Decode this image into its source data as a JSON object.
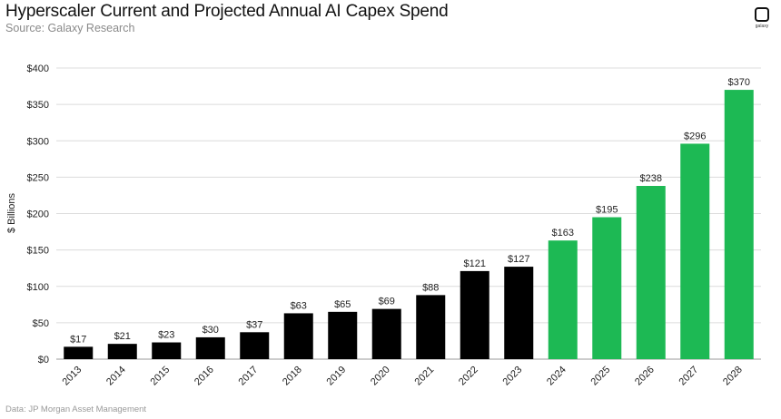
{
  "header": {
    "title": "Hyperscaler Current and Projected Annual AI Capex Spend",
    "subtitle": "Source: Galaxy Research"
  },
  "logo": {
    "text": "galaxy",
    "icon": "galaxy-logo-icon"
  },
  "footer": {
    "note": "Data: JP Morgan Asset Management"
  },
  "colors": {
    "actual": "#000000",
    "projected": "#1db954",
    "grid": "#dcdcdc"
  },
  "chart_data": {
    "type": "bar",
    "ylabel": "$ Billions",
    "ylim": [
      0,
      400
    ],
    "yticks": [
      0,
      50,
      100,
      150,
      200,
      250,
      300,
      350,
      400
    ],
    "ytick_labels": [
      "$0",
      "$50",
      "$100",
      "$150",
      "$200",
      "$250",
      "$300",
      "$350",
      "$400"
    ],
    "grid": true,
    "categories": [
      "2013",
      "2014",
      "2015",
      "2016",
      "2017",
      "2018",
      "2019",
      "2020",
      "2021",
      "2022",
      "2023",
      "2024",
      "2025",
      "2026",
      "2027",
      "2028"
    ],
    "values": [
      17,
      21,
      23,
      30,
      37,
      63,
      65,
      69,
      88,
      121,
      127,
      163,
      195,
      238,
      296,
      370
    ],
    "data_labels": [
      "$17",
      "$21",
      "$23",
      "$30",
      "$37",
      "$63",
      "$65",
      "$69",
      "$88",
      "$121",
      "$127",
      "$163",
      "$195",
      "$238",
      "$296",
      "$370"
    ],
    "bar_colors": [
      "#000000",
      "#000000",
      "#000000",
      "#000000",
      "#000000",
      "#000000",
      "#000000",
      "#000000",
      "#000000",
      "#000000",
      "#000000",
      "#1db954",
      "#1db954",
      "#1db954",
      "#1db954",
      "#1db954"
    ]
  }
}
